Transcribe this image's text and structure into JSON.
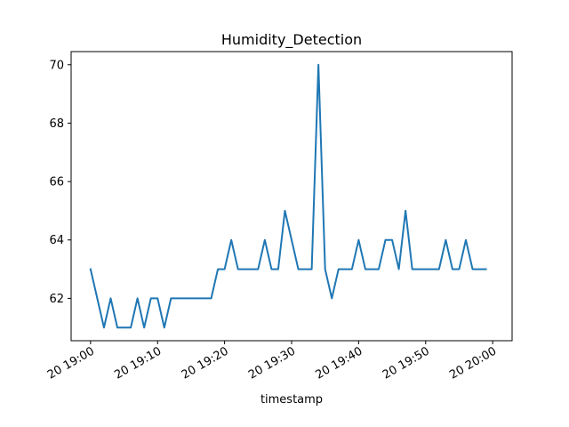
{
  "chart_data": {
    "type": "line",
    "title": "Humidity_Detection",
    "xlabel": "timestamp",
    "ylabel": "",
    "x_tick_labels": [
      "20 19:00",
      "20 19:10",
      "20 19:20",
      "20 19:30",
      "20 19:40",
      "20 19:50",
      "20 20:00"
    ],
    "y_ticks": [
      62,
      64,
      66,
      68,
      70
    ],
    "xlim_minutes": [
      -2.9,
      62.9
    ],
    "ylim": [
      60.55,
      70.45
    ],
    "grid": false,
    "series": [
      {
        "color": "#1f77b4",
        "x_minutes": [
          0,
          1,
          2,
          3,
          4,
          5,
          6,
          7,
          8,
          9,
          10,
          11,
          12,
          13,
          14,
          15,
          16,
          17,
          18,
          19,
          20,
          21,
          22,
          23,
          24,
          25,
          26,
          27,
          28,
          29,
          30,
          31,
          32,
          33,
          34,
          35,
          36,
          37,
          38,
          39,
          40,
          41,
          42,
          43,
          44,
          45,
          46,
          47,
          48,
          49,
          50,
          51,
          52,
          53,
          54,
          55,
          56,
          57,
          58,
          59
        ],
        "values": [
          63,
          62,
          61,
          62,
          61,
          61,
          61,
          62,
          61,
          62,
          62,
          61,
          62,
          62,
          62,
          62,
          62,
          62,
          62,
          63,
          63,
          64,
          63,
          63,
          63,
          63,
          64,
          63,
          63,
          65,
          64,
          63,
          63,
          63,
          70,
          63,
          62,
          63,
          63,
          63,
          64,
          63,
          63,
          63,
          64,
          64,
          63,
          65,
          63,
          63,
          63,
          63,
          63,
          64,
          63,
          63,
          64,
          63,
          63,
          63
        ]
      }
    ]
  }
}
